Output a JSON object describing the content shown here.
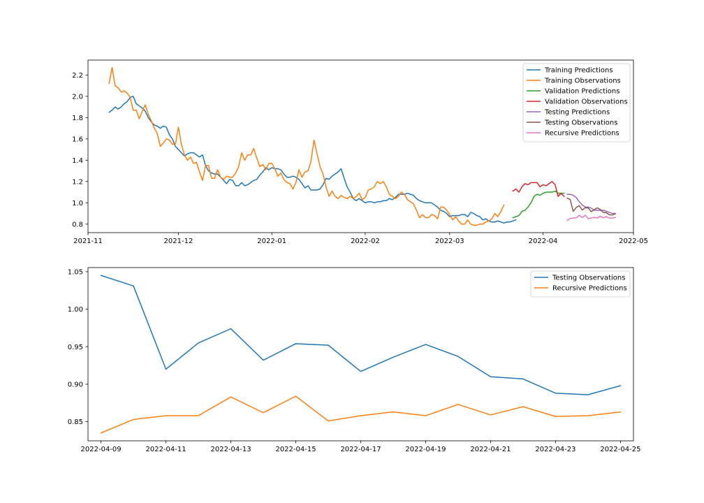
{
  "chart_data": [
    {
      "type": "line",
      "x_type": "date",
      "xlim": [
        "2021-11-01",
        "2022-05-01"
      ],
      "ylim": [
        0.72,
        2.34
      ],
      "xticks": [
        {
          "value": "2021-11-01",
          "label": "2021-11"
        },
        {
          "value": "2021-12-01",
          "label": "2021-12"
        },
        {
          "value": "2022-01-01",
          "label": "2022-01"
        },
        {
          "value": "2022-02-01",
          "label": "2022-02"
        },
        {
          "value": "2022-03-01",
          "label": "2022-03"
        },
        {
          "value": "2022-04-01",
          "label": "2022-04"
        },
        {
          "value": "2022-05-01",
          "label": "2022-05"
        }
      ],
      "yticks": [
        {
          "value": 0.8,
          "label": "0.8"
        },
        {
          "value": 1.0,
          "label": "1.0"
        },
        {
          "value": 1.2,
          "label": "1.2"
        },
        {
          "value": 1.4,
          "label": "1.4"
        },
        {
          "value": 1.6,
          "label": "1.6"
        },
        {
          "value": 1.8,
          "label": "1.8"
        },
        {
          "value": 2.0,
          "label": "2.0"
        },
        {
          "value": 2.2,
          "label": "2.2"
        }
      ],
      "grid": false,
      "legend_position": "top-right",
      "series": [
        {
          "name": "Training Predictions",
          "color": "#1f77b4",
          "start": "2021-11-08",
          "values": [
            1.85,
            1.87,
            1.9,
            1.88,
            1.9,
            1.93,
            1.95,
            1.99,
            2.0,
            1.93,
            1.91,
            1.89,
            1.86,
            1.8,
            1.76,
            1.73,
            1.72,
            1.7,
            1.72,
            1.71,
            1.64,
            1.6,
            1.53,
            1.5,
            1.47,
            1.44,
            1.46,
            1.47,
            1.47,
            1.45,
            1.43,
            1.45,
            1.35,
            1.3,
            1.28,
            1.27,
            1.27,
            1.24,
            1.21,
            1.18,
            1.22,
            1.21,
            1.16,
            1.16,
            1.19,
            1.16,
            1.17,
            1.19,
            1.21,
            1.22,
            1.26,
            1.29,
            1.33,
            1.31,
            1.33,
            1.32,
            1.32,
            1.31,
            1.27,
            1.24,
            1.24,
            1.25,
            1.24,
            1.22,
            1.18,
            1.14,
            1.16,
            1.12,
            1.12,
            1.12,
            1.13,
            1.17,
            1.23,
            1.22,
            1.25,
            1.27,
            1.29,
            1.32,
            1.23,
            1.15,
            1.1,
            1.04,
            1.02,
            1.04,
            1.02,
            1.0,
            1.01,
            1.01,
            1.0,
            1.01,
            1.01,
            1.02,
            1.02,
            1.04,
            1.03,
            1.05,
            1.08,
            1.08,
            1.08,
            1.09,
            1.08,
            1.07,
            1.04,
            1.02,
            1.01,
            1.0,
            1.0,
            1.0,
            0.98,
            0.96,
            0.93,
            0.92,
            0.9,
            0.87,
            0.88,
            0.88,
            0.88,
            0.89,
            0.89,
            0.87,
            0.91,
            0.9,
            0.88,
            0.87,
            0.84,
            0.85,
            0.83,
            0.82,
            0.82,
            0.83,
            0.82,
            0.81,
            0.82,
            0.82,
            0.83,
            0.84
          ]
        },
        {
          "name": "Training Observations",
          "color": "#ff7f0e",
          "start": "2021-11-08",
          "values": [
            2.12,
            2.27,
            2.1,
            2.08,
            2.04,
            2.05,
            2.03,
            1.99,
            1.87,
            1.87,
            1.79,
            1.86,
            1.92,
            1.83,
            1.77,
            1.7,
            1.65,
            1.53,
            1.56,
            1.6,
            1.59,
            1.55,
            1.55,
            1.71,
            1.55,
            1.45,
            1.4,
            1.43,
            1.37,
            1.38,
            1.29,
            1.21,
            1.35,
            1.35,
            1.23,
            1.23,
            1.31,
            1.24,
            1.22,
            1.25,
            1.24,
            1.24,
            1.28,
            1.34,
            1.47,
            1.4,
            1.45,
            1.45,
            1.51,
            1.42,
            1.34,
            1.36,
            1.31,
            1.37,
            1.37,
            1.32,
            1.25,
            1.28,
            1.22,
            1.19,
            1.18,
            1.13,
            1.19,
            1.31,
            1.24,
            1.29,
            1.3,
            1.39,
            1.59,
            1.46,
            1.34,
            1.27,
            1.15,
            1.06,
            1.11,
            1.06,
            1.04,
            1.07,
            1.05,
            1.04,
            1.06,
            1.04,
            1.06,
            1.09,
            1.03,
            1.05,
            1.12,
            1.13,
            1.15,
            1.2,
            1.18,
            1.2,
            1.15,
            1.08,
            1.06,
            1.04,
            1.06,
            1.1,
            1.08,
            1.03,
            1.01,
            0.99,
            0.93,
            0.86,
            0.89,
            0.86,
            0.86,
            0.89,
            0.88,
            0.85,
            0.96,
            0.96,
            0.93,
            0.89,
            0.84,
            0.87,
            0.83,
            0.8,
            0.8,
            0.84,
            0.8,
            0.79,
            0.79,
            0.8,
            0.8,
            0.82,
            0.83,
            0.85,
            0.9,
            0.87,
            0.92,
            0.98
          ]
        },
        {
          "name": "Validation Predictions",
          "color": "#2ca02c",
          "start": "2022-03-22",
          "values": [
            0.86,
            0.87,
            0.88,
            0.92,
            0.93,
            0.96,
            1.0,
            1.06,
            1.08,
            1.07,
            1.09,
            1.1,
            1.1,
            1.1,
            1.11,
            1.09,
            1.09,
            1.09
          ]
        },
        {
          "name": "Validation Observations",
          "color": "#d62728",
          "start": "2022-03-22",
          "values": [
            1.11,
            1.13,
            1.1,
            1.15,
            1.18,
            1.17,
            1.19,
            1.19,
            1.19,
            1.15,
            1.17,
            1.16,
            1.18,
            1.2,
            1.17,
            1.06,
            1.09,
            1.06
          ]
        },
        {
          "name": "Testing Predictions",
          "color": "#9467bd",
          "start": "2022-04-09",
          "values": [
            1.08,
            1.08,
            1.07,
            1.05,
            1.01,
            0.98,
            0.96,
            0.96,
            0.95,
            0.93,
            0.93,
            0.93,
            0.93,
            0.92,
            0.91,
            0.9,
            0.9
          ]
        },
        {
          "name": "Testing Observations",
          "color": "#8c564b",
          "start": "2022-04-09",
          "values": [
            1.045,
            1.031,
            0.92,
            0.955,
            0.974,
            0.932,
            0.954,
            0.952,
            0.917,
            0.936,
            0.953,
            0.937,
            0.91,
            0.907,
            0.888,
            0.886,
            0.898
          ]
        },
        {
          "name": "Recursive Predictions",
          "color": "#e377c2",
          "start": "2022-04-09",
          "values": [
            0.835,
            0.853,
            0.858,
            0.858,
            0.883,
            0.862,
            0.884,
            0.851,
            0.858,
            0.863,
            0.858,
            0.873,
            0.859,
            0.87,
            0.857,
            0.858,
            0.863
          ]
        }
      ]
    },
    {
      "type": "line",
      "x_type": "date",
      "xlim": [
        "2022-04-08.6",
        "2022-04-25.4"
      ],
      "ylim": [
        0.8245,
        1.0555
      ],
      "xticks": [
        {
          "value": "2022-04-09",
          "label": "2022-04-09"
        },
        {
          "value": "2022-04-11",
          "label": "2022-04-11"
        },
        {
          "value": "2022-04-13",
          "label": "2022-04-13"
        },
        {
          "value": "2022-04-15",
          "label": "2022-04-15"
        },
        {
          "value": "2022-04-17",
          "label": "2022-04-17"
        },
        {
          "value": "2022-04-19",
          "label": "2022-04-19"
        },
        {
          "value": "2022-04-21",
          "label": "2022-04-21"
        },
        {
          "value": "2022-04-23",
          "label": "2022-04-23"
        },
        {
          "value": "2022-04-25",
          "label": "2022-04-25"
        }
      ],
      "yticks": [
        {
          "value": 0.85,
          "label": "0.85"
        },
        {
          "value": 0.9,
          "label": "0.90"
        },
        {
          "value": 0.95,
          "label": "0.95"
        },
        {
          "value": 1.0,
          "label": "1.00"
        },
        {
          "value": 1.05,
          "label": "1.05"
        }
      ],
      "grid": false,
      "legend_position": "top-right",
      "series": [
        {
          "name": "Testing Observations",
          "color": "#1f77b4",
          "start": "2022-04-09",
          "values": [
            1.045,
            1.031,
            0.92,
            0.955,
            0.974,
            0.932,
            0.954,
            0.952,
            0.917,
            0.936,
            0.953,
            0.937,
            0.91,
            0.907,
            0.888,
            0.886,
            0.898
          ]
        },
        {
          "name": "Recursive Predictions",
          "color": "#ff7f0e",
          "start": "2022-04-09",
          "values": [
            0.835,
            0.853,
            0.858,
            0.858,
            0.883,
            0.862,
            0.884,
            0.851,
            0.858,
            0.863,
            0.858,
            0.873,
            0.859,
            0.87,
            0.857,
            0.858,
            0.863
          ]
        }
      ]
    }
  ]
}
